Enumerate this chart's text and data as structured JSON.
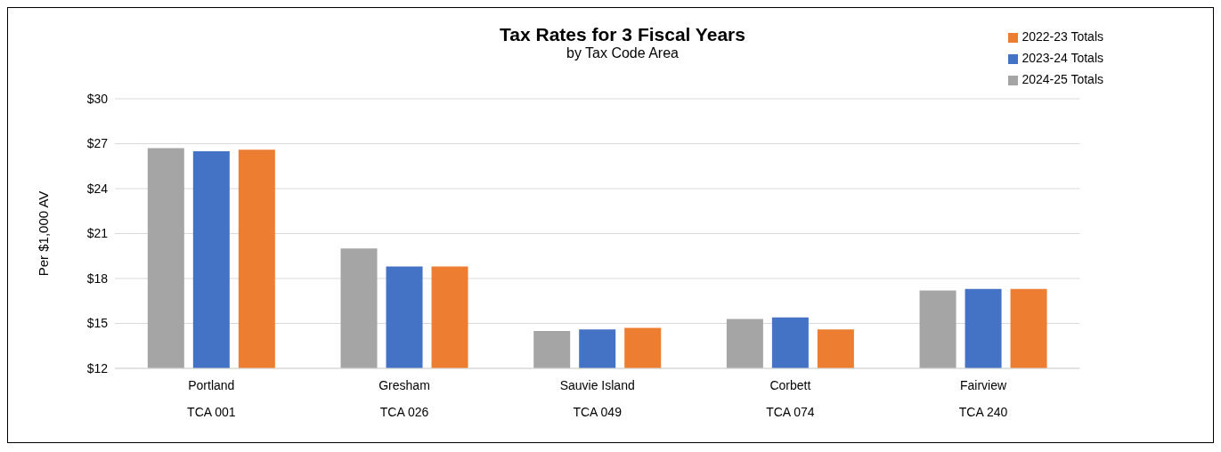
{
  "chart_data": {
    "type": "bar",
    "title": "Tax Rates for 3 Fiscal Years",
    "subtitle": "by Tax Code Area",
    "ylabel": "Per $1,000 AV",
    "categories": [
      "Portland\nTCA 001",
      "Gresham\nTCA 026",
      "Sauvie Island\nTCA 049",
      "Corbett\nTCA 074",
      "Fairview\nTCA 240"
    ],
    "series": [
      {
        "name": "2024-25 Totals",
        "color": "#a5a5a5",
        "values": [
          26.7,
          20.0,
          14.5,
          15.3,
          17.2
        ]
      },
      {
        "name": "2023-24 Totals",
        "color": "#4472c4",
        "values": [
          26.5,
          18.8,
          14.6,
          15.4,
          17.3
        ]
      },
      {
        "name": "2022-23 Totals",
        "color": "#ed7d31",
        "values": [
          26.6,
          18.8,
          14.7,
          14.6,
          17.3
        ]
      }
    ],
    "ylim": [
      12,
      30
    ],
    "yticks": [
      {
        "value": 12,
        "label": "$12"
      },
      {
        "value": 15,
        "label": "$15"
      },
      {
        "value": 18,
        "label": "$18"
      },
      {
        "value": 21,
        "label": "$21"
      },
      {
        "value": 24,
        "label": "$24"
      },
      {
        "value": 27,
        "label": "$27"
      },
      {
        "value": 30,
        "label": "$30"
      }
    ],
    "grid": "y",
    "legend": "top right"
  }
}
